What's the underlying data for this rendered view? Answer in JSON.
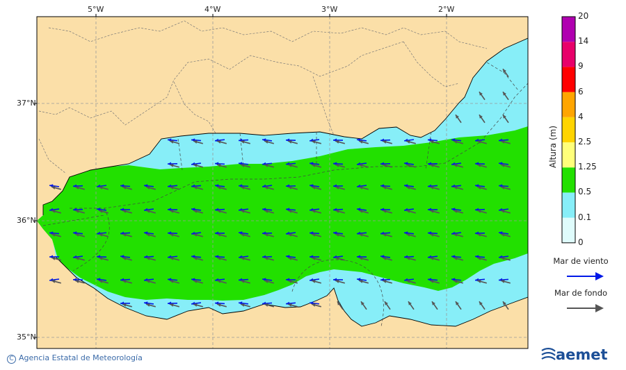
{
  "map": {
    "lon_labels": [
      "5°W",
      "4°W",
      "3°W",
      "2°W"
    ],
    "lat_labels": [
      "37°N",
      "36°N",
      "35°N"
    ],
    "colors": {
      "land": "#fbdfa8",
      "sea_low": "#87eef8",
      "sea_mid": "#22e000",
      "grid": "#9a9a9a"
    }
  },
  "legend": {
    "title": "Altura (m)",
    "levels": [
      "0",
      "0.1",
      "0.5",
      "1.25",
      "2.5",
      "4",
      "6",
      "9",
      "14",
      "20"
    ],
    "colors": [
      "#dffcfc",
      "#87eef8",
      "#22e000",
      "#ffff7a",
      "#ffd400",
      "#ffa500",
      "#ff0000",
      "#e8006a",
      "#b000b0"
    ],
    "wind_sea_label": "Mar de viento",
    "wind_sea_color": "#0018e8",
    "swell_label": "Mar de fondo",
    "swell_color": "#555555"
  },
  "footer": {
    "copyright_symbol": "C",
    "copyright_text": "Agencia Estatal de Meteorología",
    "logo_text": "aemet"
  }
}
